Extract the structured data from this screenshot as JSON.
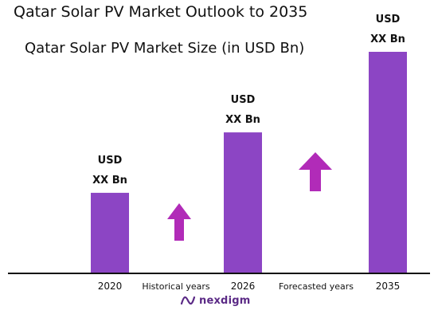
{
  "header": {
    "title": "Qatar Solar PV Market Outlook to 2035",
    "subtitle": "Qatar Solar PV Market Size (in USD Bn)"
  },
  "colors": {
    "bar": "#8c45c4",
    "arrow": "#b12bb8",
    "axis": "#111111",
    "logo": "#5b2a86"
  },
  "chart_data": {
    "type": "bar",
    "title": "Qatar Solar PV Market Size (in USD Bn)",
    "categories": [
      "2020",
      "2026",
      "2035"
    ],
    "values": [
      1,
      1.75,
      2.75
    ],
    "value_labels": [
      [
        "USD",
        "XX Bn"
      ],
      [
        "USD",
        "XX Bn"
      ],
      [
        "USD",
        "XX Bn"
      ]
    ],
    "period_labels": [
      "Historical years",
      "Forecasted years"
    ],
    "ylim": [
      0,
      2.75
    ],
    "xlabel": "",
    "ylabel": "",
    "grid": false,
    "legend": "none"
  },
  "logo": {
    "text": "nexdigm",
    "icon": "nexdigm-logo-icon"
  }
}
